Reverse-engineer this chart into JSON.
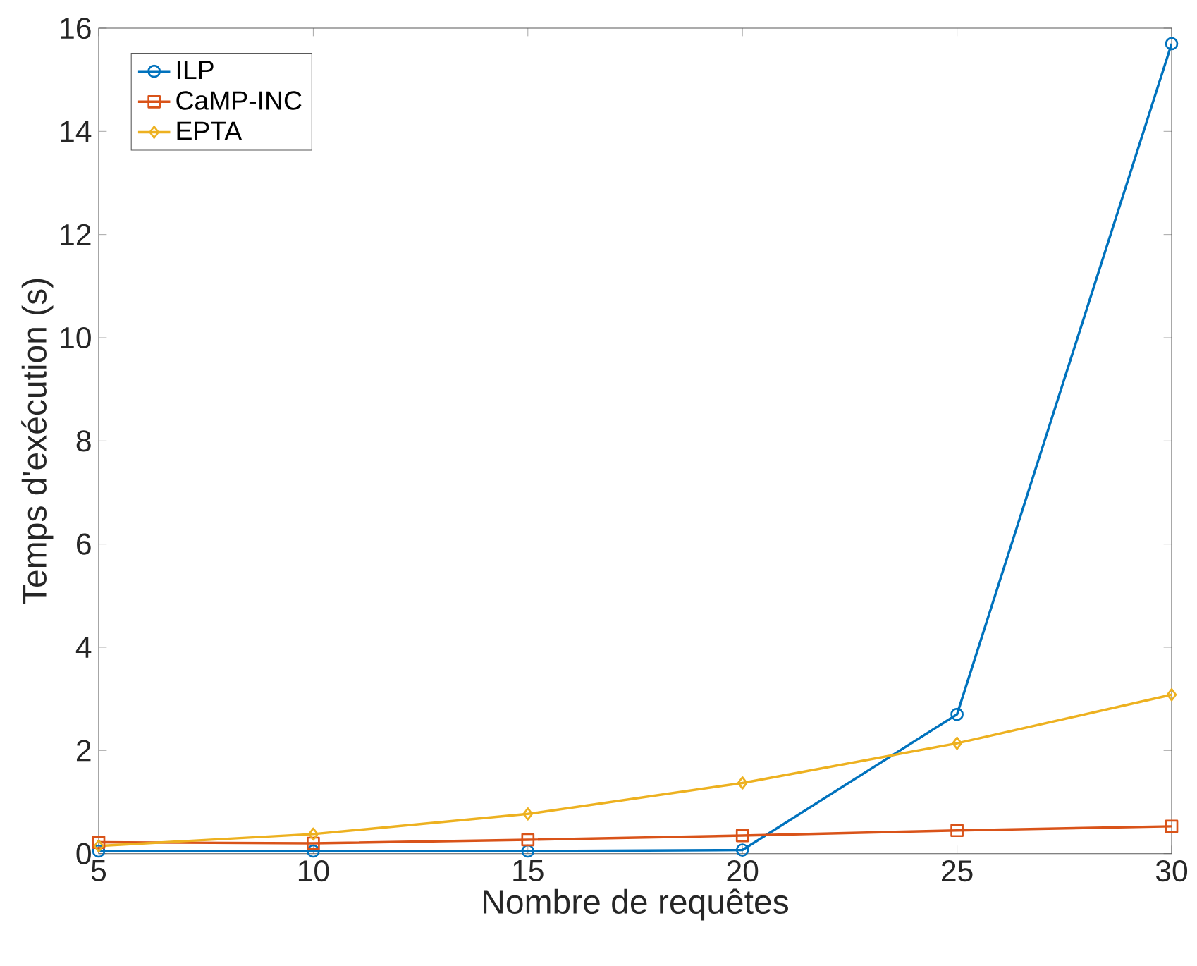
{
  "chart_data": {
    "type": "line",
    "xlabel": "Nombre de requêtes",
    "ylabel": "Temps d'exécution (s)",
    "x": [
      5,
      10,
      15,
      20,
      25,
      30
    ],
    "series": [
      {
        "name": "ILP",
        "color": "#0072bd",
        "marker": "circle",
        "values": [
          0.05,
          0.05,
          0.05,
          0.07,
          2.7,
          15.7
        ]
      },
      {
        "name": "CaMP-INC",
        "color": "#d95319",
        "marker": "square",
        "values": [
          0.22,
          0.2,
          0.27,
          0.35,
          0.45,
          0.53
        ]
      },
      {
        "name": "EPTA",
        "color": "#edb120",
        "marker": "diamond",
        "values": [
          0.15,
          0.38,
          0.77,
          1.37,
          2.14,
          3.08
        ]
      }
    ],
    "xlim": [
      5,
      30
    ],
    "ylim": [
      0,
      16
    ],
    "xticks": [
      5,
      10,
      15,
      20,
      25,
      30
    ],
    "yticks": [
      0,
      2,
      4,
      6,
      8,
      10,
      12,
      14,
      16
    ],
    "grid": false,
    "legend": "top left",
    "line_style": "solid"
  }
}
